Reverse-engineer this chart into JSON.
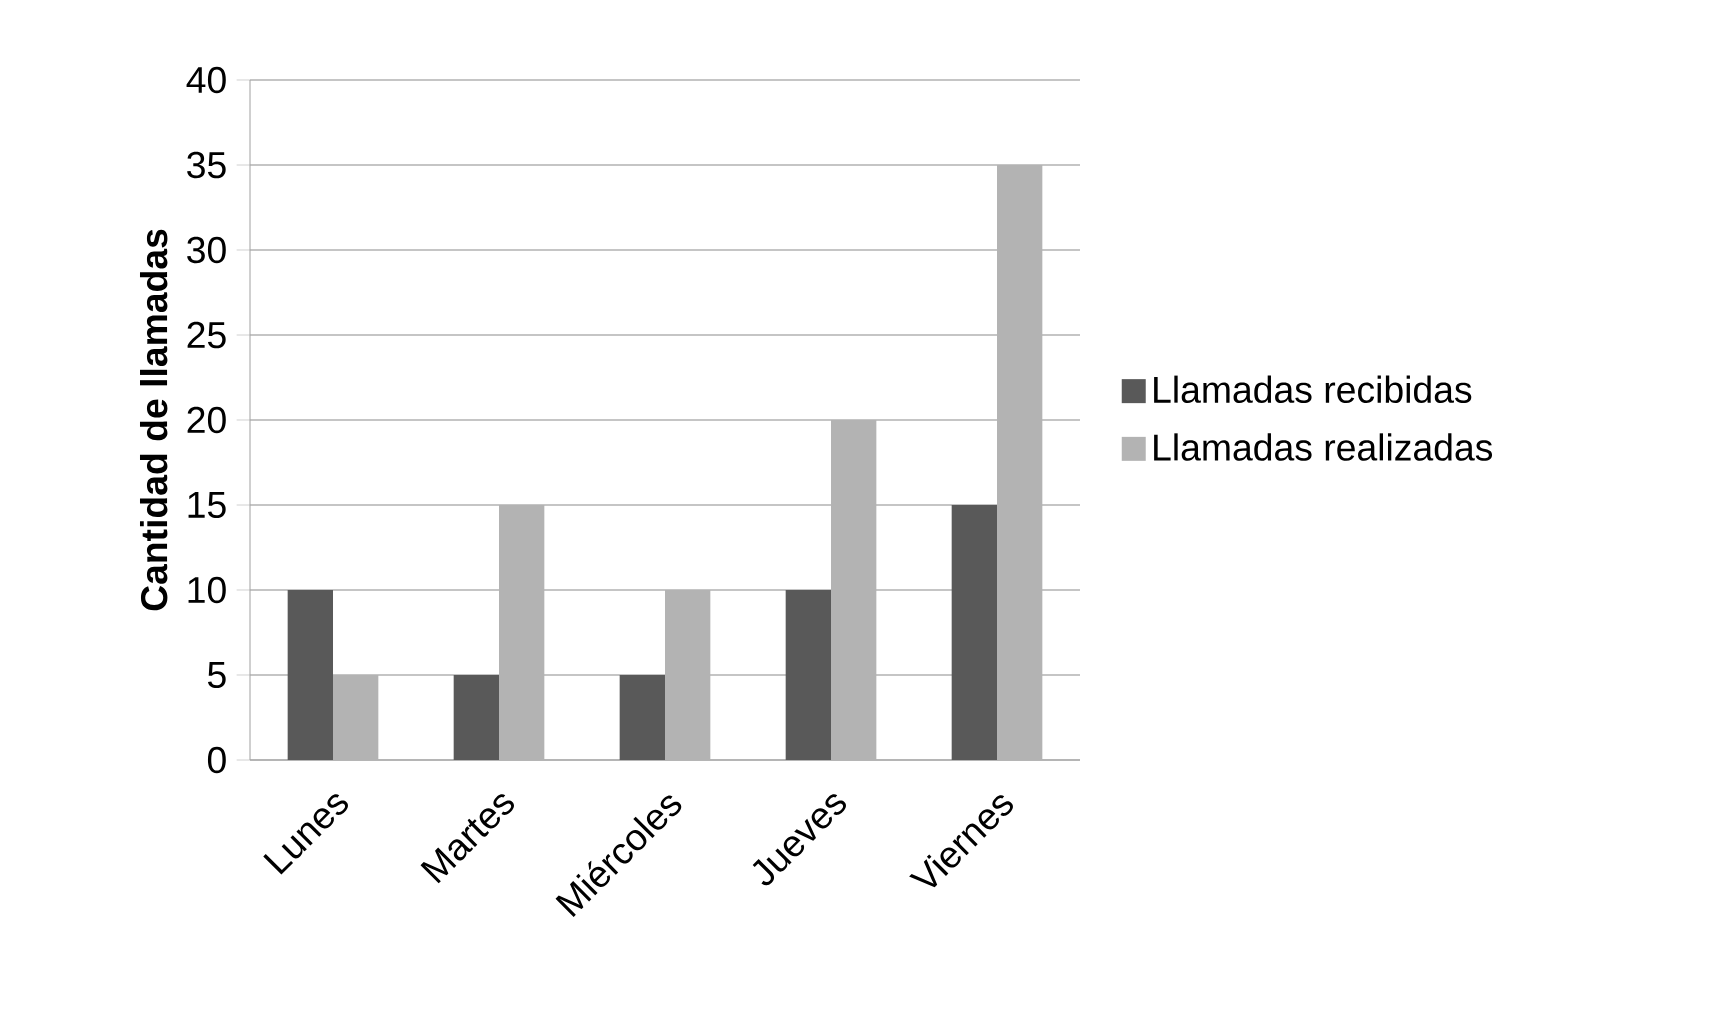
{
  "chart_data": {
    "type": "bar",
    "ylabel": "Cantidad de llamadas",
    "categories": [
      "Lunes",
      "Martes",
      "Miércoles",
      "Jueves",
      "Viernes"
    ],
    "series": [
      {
        "name": "Llamadas recibidas",
        "color": "#595959",
        "values": [
          10,
          5,
          5,
          10,
          15
        ]
      },
      {
        "name": "Llamadas realizadas",
        "color": "#b3b3b3",
        "values": [
          5,
          15,
          10,
          20,
          35
        ]
      }
    ],
    "ylim": [
      0,
      40
    ],
    "yticks": [
      0,
      5,
      10,
      15,
      20,
      25,
      30,
      35,
      40
    ],
    "grid": "y",
    "legend": "right"
  }
}
